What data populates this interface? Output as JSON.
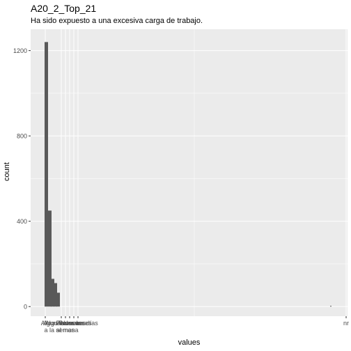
{
  "chart_data": {
    "type": "bar",
    "title": "A20_2_Top_21",
    "subtitle": "Ha sido expuesto a una excesiva carga de trabajo.",
    "xlabel": "values",
    "ylabel": "count",
    "ylim": [
      -45,
      1300
    ],
    "yticks": [
      0,
      400,
      800,
      1200
    ],
    "grid": true,
    "categories": [
      "A",
      "Algunas veces a la semana",
      "Algunas veces al mes",
      "Nunca",
      "Pocas veces",
      "Todos los días",
      "nr"
    ],
    "tick_label_lines": [
      [
        "A"
      ],
      [
        "Algunas veces",
        "a la semana"
      ],
      [
        "Algunas veces",
        "al mes"
      ],
      [
        "Nunca"
      ],
      [
        "Pocas veces"
      ],
      [
        "Todos los días"
      ],
      [
        "nr"
      ]
    ],
    "values": [
      1240,
      450,
      130,
      110,
      65,
      0,
      3
    ],
    "bar_color": "#595959",
    "panel_color": "#ebebeb",
    "grid_color": "#ffffff"
  }
}
